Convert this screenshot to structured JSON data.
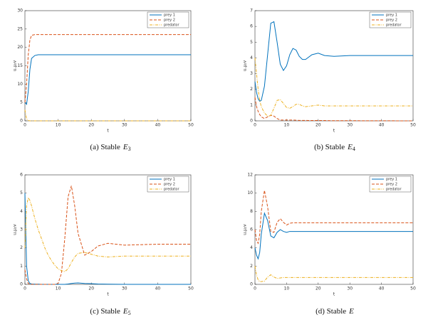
{
  "chart_data": [
    {
      "type": "line",
      "caption": "(a) Stable",
      "caption_symbol": "E",
      "caption_subscript": "3",
      "xlabel": "t",
      "ylabel": "u,μ₂v",
      "x": [
        0,
        0.5,
        1,
        1.5,
        2,
        3,
        4,
        5,
        6,
        7,
        8,
        9,
        10,
        11,
        12,
        13,
        14,
        15,
        16,
        18,
        20,
        22,
        25,
        30,
        40,
        50
      ],
      "xlim": [
        0,
        50
      ],
      "xticks": [
        0,
        10,
        20,
        30,
        40,
        50
      ],
      "ylim": [
        0,
        30
      ],
      "yticks": [
        0,
        5,
        10,
        15,
        20,
        25,
        30
      ],
      "series": [
        {
          "name": "prey 1",
          "color": "#0072bd",
          "dash": "solid",
          "values": [
            5,
            4.5,
            8,
            14,
            17,
            17.8,
            18,
            18,
            18,
            18,
            18,
            18,
            18,
            18,
            18,
            18,
            18,
            18,
            18,
            18,
            18,
            18,
            18,
            18,
            18,
            18
          ]
        },
        {
          "name": "prey 2",
          "color": "#d95319",
          "dash": "dashed",
          "values": [
            5,
            10,
            18,
            22,
            23.3,
            23.5,
            23.5,
            23.5,
            23.5,
            23.5,
            23.5,
            23.5,
            23.5,
            23.5,
            23.5,
            23.5,
            23.5,
            23.5,
            23.5,
            23.5,
            23.5,
            23.5,
            23.5,
            23.5,
            23.5,
            23.5
          ]
        },
        {
          "name": "predator",
          "color": "#edb120",
          "dash": "dashdot",
          "values": [
            3,
            0.5,
            0.1,
            0,
            0,
            0,
            0,
            0,
            0,
            0,
            0,
            0,
            0,
            0,
            0,
            0,
            0,
            0,
            0,
            0,
            0,
            0,
            0,
            0,
            0,
            0
          ]
        }
      ]
    },
    {
      "type": "line",
      "caption": "(b) Stable",
      "caption_symbol": "E",
      "caption_subscript": "4",
      "xlabel": "t",
      "ylabel": "u,μ₂v",
      "x": [
        0,
        0.5,
        1,
        1.5,
        2,
        3,
        4,
        5,
        6,
        7,
        8,
        9,
        10,
        11,
        12,
        13,
        14,
        15,
        16,
        18,
        20,
        22,
        25,
        30,
        40,
        50
      ],
      "xlim": [
        0,
        50
      ],
      "xticks": [
        0,
        10,
        20,
        30,
        40,
        50
      ],
      "ylim": [
        0,
        7
      ],
      "yticks": [
        0,
        1,
        2,
        3,
        4,
        5,
        6,
        7
      ],
      "series": [
        {
          "name": "prey 1",
          "color": "#0072bd",
          "dash": "solid",
          "values": [
            2.5,
            1.8,
            1.4,
            1.25,
            1.3,
            2.2,
            4.2,
            6.2,
            6.3,
            5.0,
            3.6,
            3.2,
            3.5,
            4.2,
            4.6,
            4.5,
            4.1,
            3.9,
            3.9,
            4.2,
            4.3,
            4.15,
            4.1,
            4.15,
            4.15,
            4.15
          ]
        },
        {
          "name": "prey 2",
          "color": "#d95319",
          "dash": "dashed",
          "values": [
            1.5,
            0.9,
            0.6,
            0.4,
            0.25,
            0.15,
            0.25,
            0.35,
            0.3,
            0.15,
            0.05,
            0.05,
            0.05,
            0.05,
            0.05,
            0.04,
            0.03,
            0.03,
            0.03,
            0.02,
            0.02,
            0.02,
            0.01,
            0.01,
            0.005,
            0
          ]
        },
        {
          "name": "predator",
          "color": "#edb120",
          "dash": "dashdot",
          "values": [
            4,
            3,
            2,
            1.3,
            0.9,
            0.5,
            0.3,
            0.35,
            0.8,
            1.3,
            1.35,
            1.1,
            0.85,
            0.8,
            0.9,
            1.05,
            1.05,
            0.95,
            0.9,
            0.95,
            1.0,
            0.95,
            0.95,
            0.95,
            0.95,
            0.95
          ]
        }
      ]
    },
    {
      "type": "line",
      "caption": "(c) Stable",
      "caption_symbol": "E",
      "caption_subscript": "5",
      "xlabel": "t",
      "ylabel": "u,μ₂v",
      "x": [
        0,
        0.5,
        1,
        1.5,
        2,
        3,
        4,
        5,
        6,
        7,
        8,
        9,
        10,
        11,
        12,
        13,
        14,
        15,
        16,
        18,
        20,
        22,
        25,
        30,
        40,
        50
      ],
      "xlim": [
        0,
        50
      ],
      "xticks": [
        0,
        10,
        20,
        30,
        40,
        50
      ],
      "ylim": [
        0,
        6
      ],
      "yticks": [
        0,
        1,
        2,
        3,
        4,
        5,
        6
      ],
      "series": [
        {
          "name": "prey 1",
          "color": "#0072bd",
          "dash": "solid",
          "values": [
            5,
            1,
            0.2,
            0.05,
            0.02,
            0.01,
            0.01,
            0,
            0,
            0,
            0,
            0,
            0,
            0,
            0,
            0.02,
            0.05,
            0.07,
            0.08,
            0.05,
            0.04,
            0.02,
            0.01,
            0,
            0,
            0
          ]
        },
        {
          "name": "prey 2",
          "color": "#d95319",
          "dash": "dashed",
          "values": [
            0.8,
            0.3,
            0.05,
            0,
            0,
            0,
            0,
            0,
            0,
            0,
            0,
            0,
            0.05,
            0.6,
            2.5,
            4.8,
            5.4,
            4.3,
            2.8,
            1.6,
            1.8,
            2.1,
            2.25,
            2.15,
            2.2,
            2.2
          ]
        },
        {
          "name": "predator",
          "color": "#edb120",
          "dash": "dashdot",
          "values": [
            2.0,
            4.3,
            4.75,
            4.6,
            4.3,
            3.6,
            3.0,
            2.5,
            2.0,
            1.6,
            1.3,
            1.05,
            0.85,
            0.75,
            0.7,
            0.85,
            1.2,
            1.5,
            1.7,
            1.75,
            1.65,
            1.55,
            1.5,
            1.55,
            1.55,
            1.55
          ]
        }
      ]
    },
    {
      "type": "line",
      "caption": "(d) Stable",
      "caption_symbol": "E",
      "xlabel": "t",
      "ylabel": "u,μ₂v",
      "x": [
        0,
        0.5,
        1,
        1.5,
        2,
        3,
        4,
        5,
        6,
        7,
        8,
        9,
        10,
        11,
        12,
        13,
        14,
        15,
        16,
        18,
        20,
        22,
        25,
        30,
        40,
        50
      ],
      "xlim": [
        0,
        50
      ],
      "xticks": [
        0,
        10,
        20,
        30,
        40,
        50
      ],
      "ylim": [
        0,
        12
      ],
      "yticks": [
        0,
        2,
        4,
        6,
        8,
        10,
        12
      ],
      "series": [
        {
          "name": "prey 1",
          "color": "#0072bd",
          "dash": "solid",
          "values": [
            4,
            3.2,
            2.8,
            3.5,
            5.5,
            7.8,
            7,
            5.3,
            5.1,
            5.7,
            6.0,
            5.8,
            5.7,
            5.8,
            5.8,
            5.8,
            5.8,
            5.8,
            5.8,
            5.8,
            5.8,
            5.8,
            5.8,
            5.8,
            5.8,
            5.8
          ]
        },
        {
          "name": "prey 2",
          "color": "#d95319",
          "dash": "dashed",
          "values": [
            6,
            4.8,
            4.5,
            5.5,
            8,
            10.3,
            8.5,
            5.8,
            5.7,
            6.8,
            7.2,
            6.8,
            6.5,
            6.7,
            6.75,
            6.75,
            6.75,
            6.75,
            6.75,
            6.75,
            6.75,
            6.75,
            6.75,
            6.75,
            6.75,
            6.75
          ]
        },
        {
          "name": "predator",
          "color": "#edb120",
          "dash": "dashdot",
          "values": [
            2,
            1,
            0.5,
            0.3,
            0.3,
            0.35,
            0.8,
            1.05,
            0.8,
            0.65,
            0.7,
            0.75,
            0.75,
            0.75,
            0.75,
            0.75,
            0.75,
            0.75,
            0.75,
            0.75,
            0.75,
            0.75,
            0.75,
            0.75,
            0.75,
            0.75
          ]
        }
      ]
    }
  ]
}
